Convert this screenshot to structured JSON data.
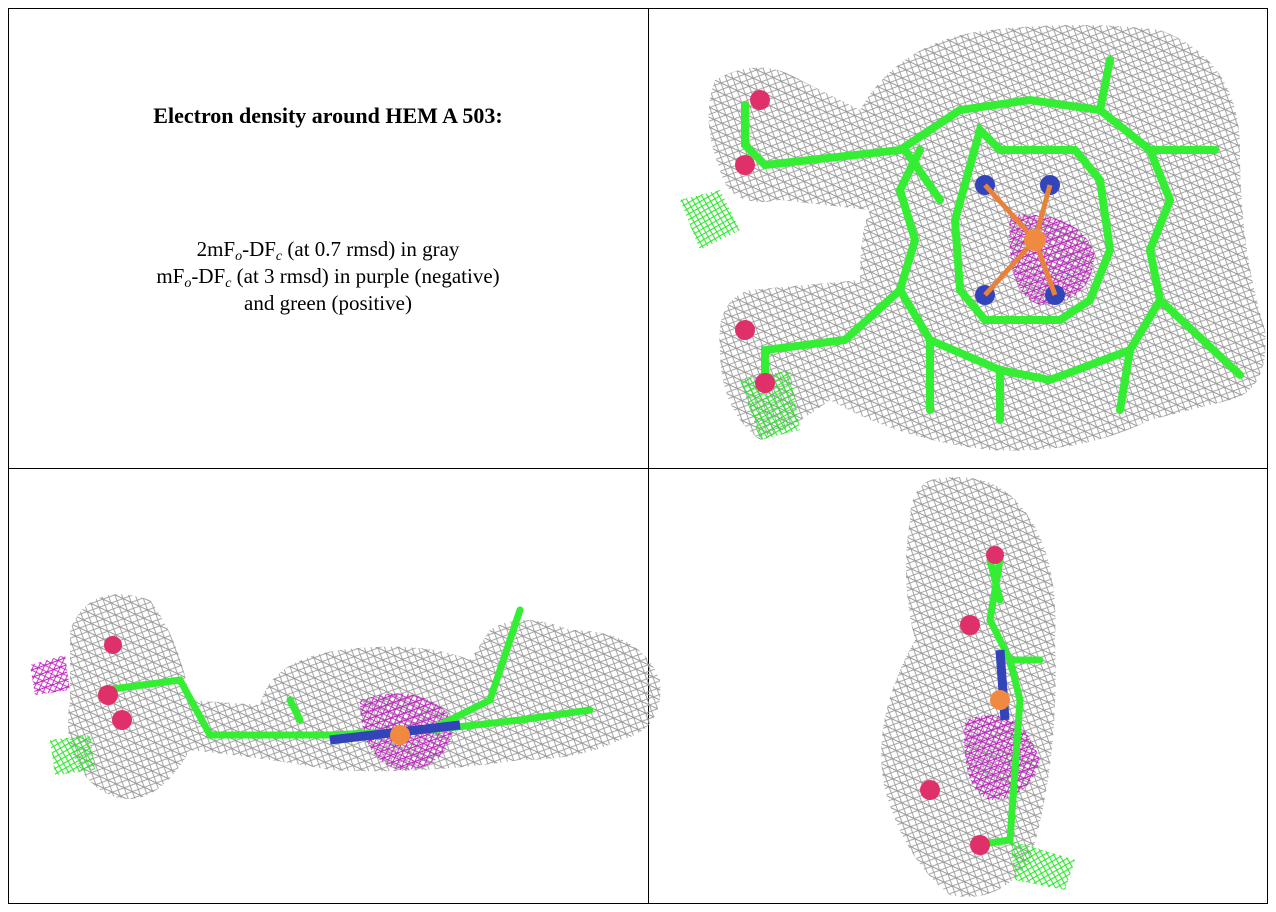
{
  "caption": {
    "title": "Electron density around HEM A 503:",
    "line1": [
      "2mF",
      "o",
      "-DF",
      "c",
      " (at 0.7 rmsd) in gray"
    ],
    "line2": [
      "mF",
      "o",
      "-DF",
      "c",
      " (at 3 rmsd) in purple (negative)"
    ],
    "line3": "and green (positive)"
  }
}
